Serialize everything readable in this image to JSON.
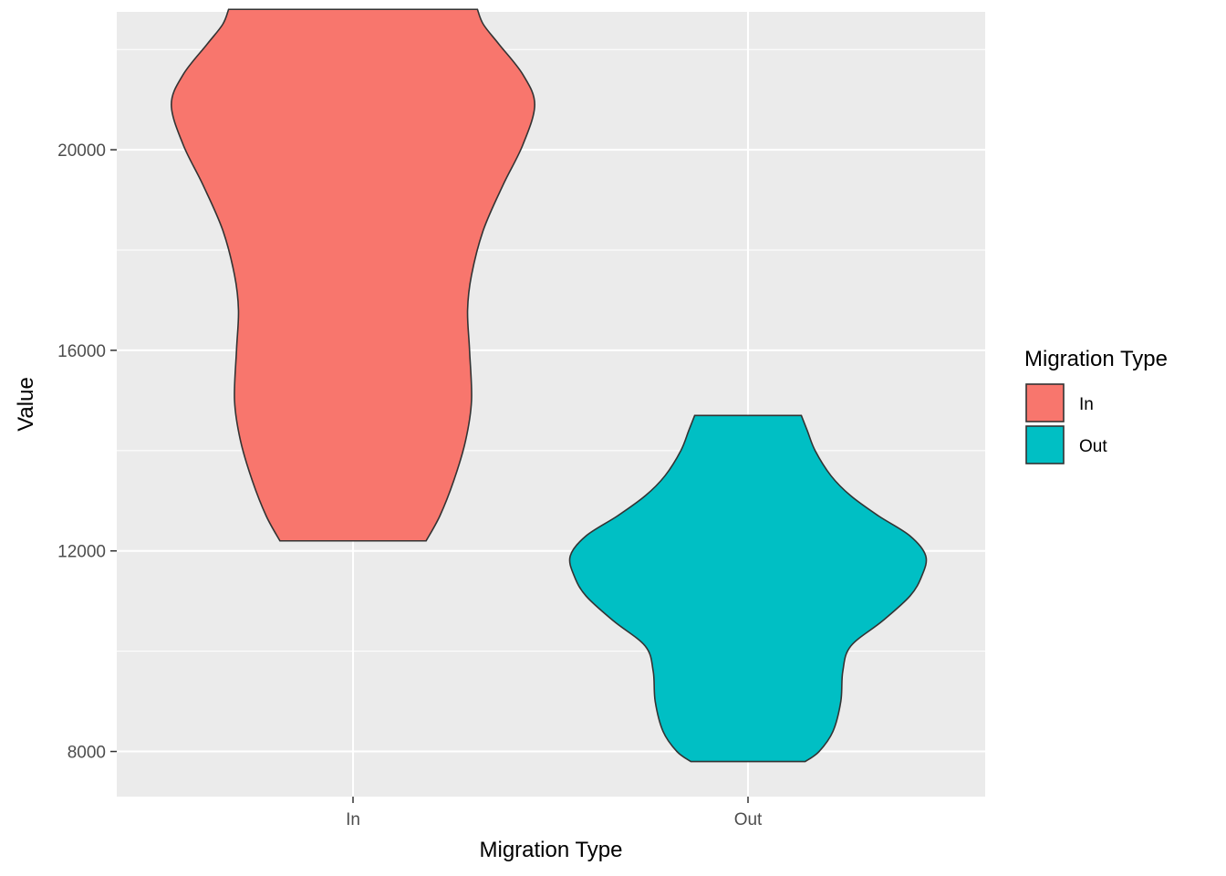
{
  "chart_data": {
    "type": "violin",
    "title": "",
    "xlabel": "Migration Type",
    "ylabel": "Value",
    "categories": [
      "In",
      "Out"
    ],
    "ylim": [
      7100,
      22750
    ],
    "yticks": [
      8000,
      12000,
      16000,
      20000
    ],
    "yticks_minor": [
      10000,
      14000,
      18000,
      22000
    ],
    "grid": true,
    "legend": {
      "title": "Migration Type",
      "position": "right",
      "entries": [
        {
          "label": "In",
          "color": "#F8766D"
        },
        {
          "label": "Out",
          "color": "#00BFC4"
        }
      ]
    },
    "series": [
      {
        "category": "In",
        "color": "#F8766D",
        "min": 12200,
        "max": 22800,
        "profile": [
          [
            12200,
            0.185
          ],
          [
            12700,
            0.22
          ],
          [
            13400,
            0.255
          ],
          [
            14200,
            0.285
          ],
          [
            15000,
            0.3
          ],
          [
            16000,
            0.295
          ],
          [
            16800,
            0.29
          ],
          [
            17500,
            0.3
          ],
          [
            18400,
            0.33
          ],
          [
            19300,
            0.38
          ],
          [
            20100,
            0.43
          ],
          [
            20900,
            0.46
          ],
          [
            21500,
            0.43
          ],
          [
            22100,
            0.37
          ],
          [
            22500,
            0.33
          ],
          [
            22800,
            0.315
          ]
        ]
      },
      {
        "category": "Out",
        "color": "#00BFC4",
        "min": 7800,
        "max": 14700,
        "profile": [
          [
            7800,
            0.145
          ],
          [
            8000,
            0.18
          ],
          [
            8400,
            0.215
          ],
          [
            9000,
            0.235
          ],
          [
            9600,
            0.24
          ],
          [
            10100,
            0.26
          ],
          [
            10600,
            0.34
          ],
          [
            11100,
            0.41
          ],
          [
            11500,
            0.44
          ],
          [
            11900,
            0.45
          ],
          [
            12300,
            0.41
          ],
          [
            12700,
            0.33
          ],
          [
            13100,
            0.26
          ],
          [
            13500,
            0.21
          ],
          [
            14000,
            0.17
          ],
          [
            14400,
            0.15
          ],
          [
            14700,
            0.135
          ]
        ]
      }
    ]
  }
}
